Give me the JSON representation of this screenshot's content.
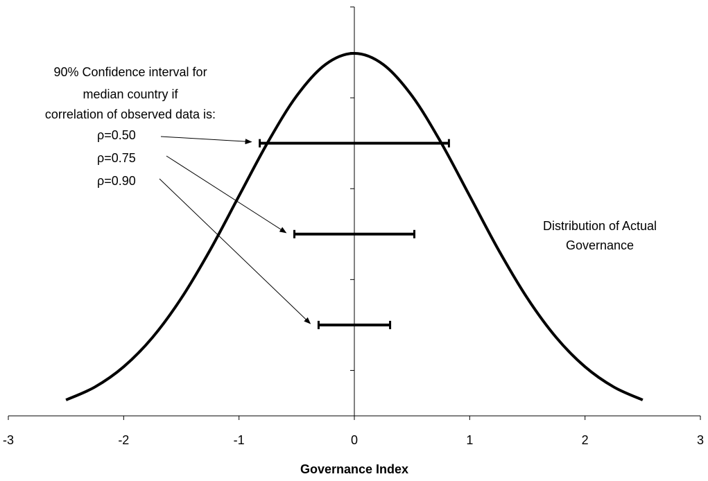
{
  "chart_data": {
    "type": "line",
    "x": [
      -2.5,
      -2.25,
      -2,
      -1.75,
      -1.5,
      -1.25,
      -1,
      -0.75,
      -0.5,
      -0.25,
      0,
      0.25,
      0.5,
      0.75,
      1,
      1.25,
      1.5,
      1.75,
      2,
      2.25,
      2.5
    ],
    "values": [
      0.0175,
      0.0317,
      0.054,
      0.0863,
      0.1295,
      0.1826,
      0.242,
      0.3011,
      0.3521,
      0.3867,
      0.3989,
      0.3867,
      0.3521,
      0.3011,
      0.242,
      0.1826,
      0.1295,
      0.0863,
      0.054,
      0.0317,
      0.0175
    ],
    "color": "#000000",
    "xlim": [
      -3,
      3
    ],
    "xticks": [
      -3,
      -2,
      -1,
      0,
      1,
      2,
      3
    ],
    "ylim": [
      0,
      0.45
    ],
    "yticks": [
      0,
      0.05,
      0.1,
      0.15,
      0.2,
      0.25,
      0.3,
      0.35,
      0.4,
      0.45
    ],
    "xlabel": "Governance Index",
    "intervals": [
      {
        "name": "ρ=0.50",
        "y": 0.3,
        "low": -0.82,
        "high": 0.82
      },
      {
        "name": "ρ=0.75",
        "y": 0.2,
        "low": -0.52,
        "high": 0.52
      },
      {
        "name": "ρ=0.90",
        "y": 0.1,
        "low": -0.31,
        "high": 0.31
      }
    ],
    "annotation": [
      "90% Confidence interval for",
      "median country if",
      "correlation of observed data is:"
    ],
    "curve_label": [
      "Distribution of Actual",
      "Governance"
    ]
  }
}
